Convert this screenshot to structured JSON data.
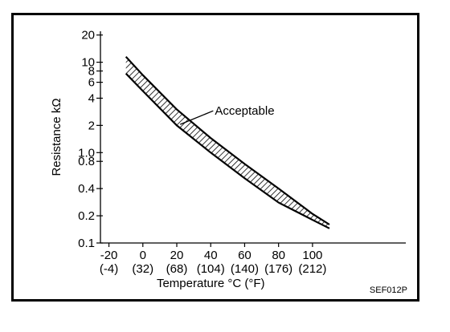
{
  "chart_data": {
    "type": "area",
    "title": "",
    "xlabel": "Temperature °C (°F)",
    "ylabel": "Resistance kΩ",
    "y_scale": "log",
    "x_tick_values": [
      -20,
      0,
      20,
      40,
      60,
      80,
      100
    ],
    "x_tick_labels_c": [
      "-20",
      "0",
      "20",
      "40",
      "60",
      "80",
      "100"
    ],
    "x_tick_labels_f": [
      "(-4)",
      "(32)",
      "(68)",
      "(104)",
      "(140)",
      "(176)",
      "(212)"
    ],
    "y_tick_values": [
      0.1,
      0.2,
      0.4,
      0.8,
      1.0,
      2,
      4,
      6,
      8,
      10,
      20
    ],
    "y_tick_labels": [
      "0.1",
      "0.2",
      "0.4",
      "0.8",
      "1.0",
      "2",
      "4",
      "6",
      "8",
      "10",
      "20"
    ],
    "xlim": [
      -25,
      155
    ],
    "ylim": [
      0.1,
      22
    ],
    "grid": false,
    "series": [
      {
        "name": "Acceptable",
        "x": [
          -10,
          0,
          20,
          40,
          60,
          80,
          100,
          110
        ],
        "upper": [
          11.5,
          7.2,
          3.0,
          1.45,
          0.75,
          0.4,
          0.21,
          0.16
        ],
        "lower": [
          7.5,
          4.8,
          2.0,
          1.0,
          0.52,
          0.28,
          0.18,
          0.145
        ]
      }
    ],
    "annotations": [
      {
        "text": "Acceptable",
        "x": 32,
        "y": 2.9
      }
    ],
    "figure_code": "SEF012P"
  }
}
